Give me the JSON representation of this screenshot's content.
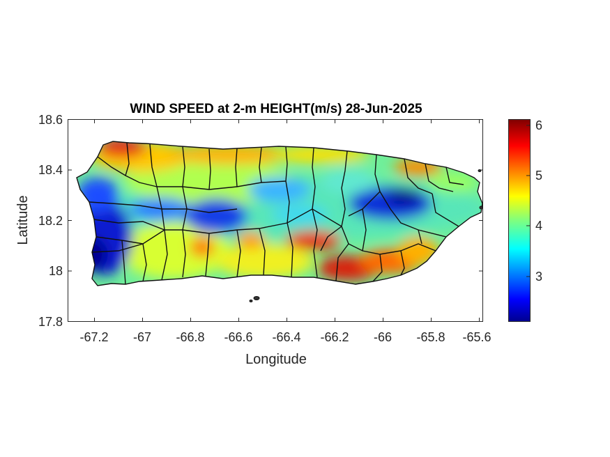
{
  "map": {
    "title": "WIND SPEED at 2-m HEIGHT(m/s) 28-Jun-2025",
    "xlabel": "Longitude",
    "ylabel": "Latitude",
    "x_ticks": [
      "-67.2",
      "-67",
      "-66.8",
      "-66.6",
      "-66.4",
      "-66.2",
      "-66",
      "-65.8",
      "-65.6"
    ],
    "y_ticks": [
      "18.6",
      "18.4",
      "18.2",
      "18",
      "17.8"
    ],
    "xlim": [
      -67.3,
      -65.58
    ],
    "ylim": [
      17.8,
      18.6
    ],
    "colorbar": {
      "ticks": [
        "6",
        "5",
        "4",
        "3"
      ],
      "range": [
        2.1,
        6.1
      ],
      "colormap": "jet"
    },
    "colors": {
      "boundary": "#111111",
      "low": "#0000a0",
      "high": "#800000"
    }
  }
}
